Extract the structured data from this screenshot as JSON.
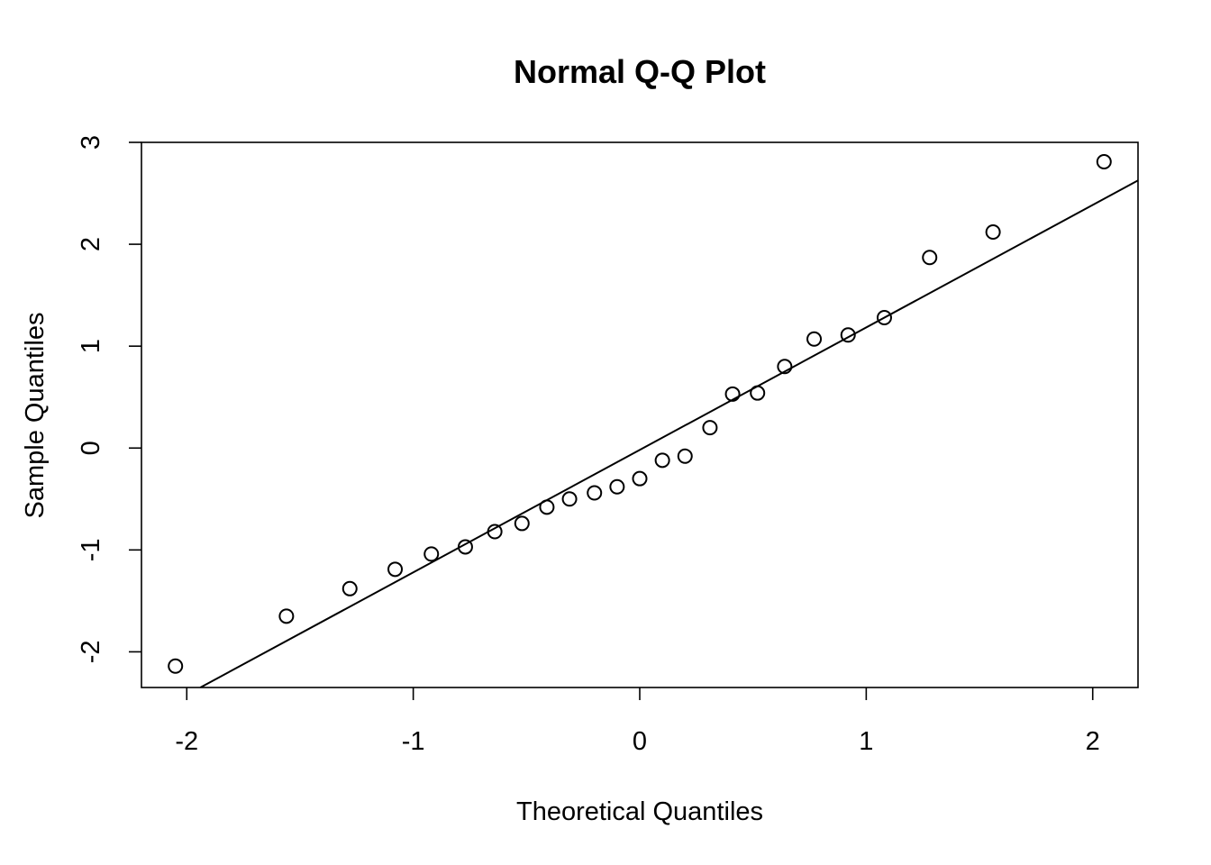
{
  "chart_data": {
    "type": "scatter",
    "title": "Normal Q-Q Plot",
    "xlabel": "Theoretical Quantiles",
    "ylabel": "Sample Quantiles",
    "xlim": [
      -2.2,
      2.2
    ],
    "ylim": [
      -2.35,
      3.0
    ],
    "xticks": [
      -2,
      -1,
      0,
      1,
      2
    ],
    "xtick_labels": [
      "-2",
      "-1",
      "0",
      "1",
      "2"
    ],
    "yticks": [
      -2,
      -1,
      0,
      1,
      2,
      3
    ],
    "ytick_labels": [
      "-2",
      "-1",
      "0",
      "1",
      "2",
      "3"
    ],
    "grid": false,
    "legend": "none",
    "x": [
      -2.05,
      -1.56,
      -1.28,
      -1.08,
      -0.92,
      -0.77,
      -0.64,
      -0.52,
      -0.41,
      -0.31,
      -0.2,
      -0.1,
      0.0,
      0.1,
      0.2,
      0.31,
      0.41,
      0.52,
      0.64,
      0.77,
      0.92,
      1.08,
      1.28,
      1.56,
      2.05
    ],
    "y": [
      -2.14,
      -1.65,
      -1.38,
      -1.19,
      -1.04,
      -0.97,
      -0.82,
      -0.74,
      -0.58,
      -0.5,
      -0.44,
      -0.38,
      -0.3,
      -0.12,
      -0.08,
      0.2,
      0.53,
      0.54,
      0.8,
      1.07,
      1.11,
      1.28,
      1.87,
      2.12,
      2.81
    ],
    "reference_line": {
      "points": [
        [
          -1.94,
          -2.35
        ],
        [
          2.22,
          2.65
        ]
      ]
    },
    "colors": {
      "points": "#000000",
      "line": "#000000",
      "axes": "#000000"
    }
  }
}
